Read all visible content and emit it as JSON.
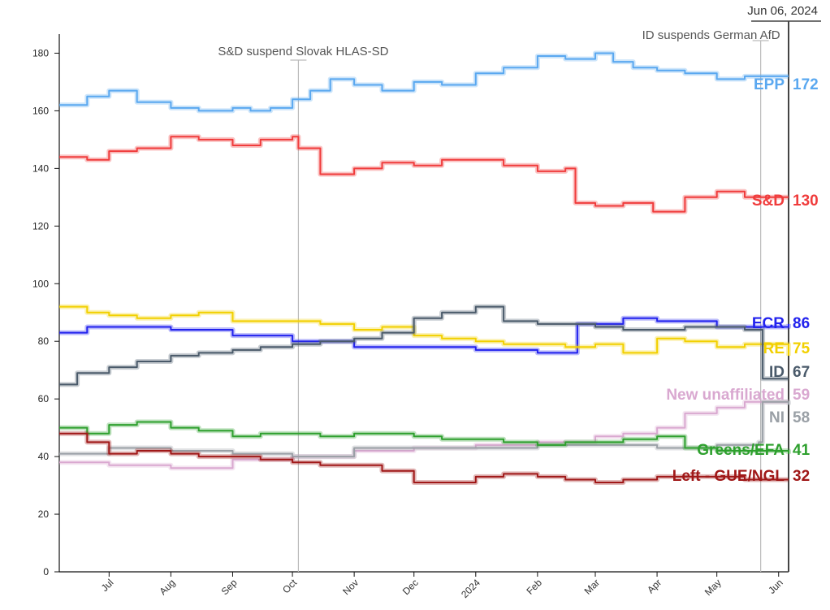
{
  "chart_data": {
    "type": "line",
    "title": "",
    "xlabel": "",
    "ylabel": "",
    "ylim": [
      0,
      190
    ],
    "yticks": [
      0,
      20,
      40,
      60,
      80,
      100,
      120,
      140,
      160,
      180
    ],
    "x_range": [
      "2023-06-06",
      "2024-06-06"
    ],
    "x_ticks": [
      {
        "label": "Jul",
        "date": "2023-07-01"
      },
      {
        "label": "Aug",
        "date": "2023-08-01"
      },
      {
        "label": "Sep",
        "date": "2023-09-01"
      },
      {
        "label": "Oct",
        "date": "2023-10-01"
      },
      {
        "label": "Nov",
        "date": "2023-11-01"
      },
      {
        "label": "Dec",
        "date": "2023-12-01"
      },
      {
        "label": "2024",
        "date": "2024-01-01"
      },
      {
        "label": "Feb",
        "date": "2024-02-01"
      },
      {
        "label": "Mar",
        "date": "2024-03-01"
      },
      {
        "label": "Apr",
        "date": "2024-04-01"
      },
      {
        "label": "May",
        "date": "2024-05-01"
      },
      {
        "label": "Jun",
        "date": "2024-06-01"
      }
    ],
    "grid": false,
    "legend": "inline labels at right end of each line",
    "annotations": [
      {
        "date": "2023-10-04",
        "text": "S&D suspend Slovak HLAS-SD"
      },
      {
        "date": "2024-05-23",
        "text": "ID suspends German AfD"
      },
      {
        "date": "2024-06-06",
        "text": "Jun 06, 2024"
      }
    ],
    "series": [
      {
        "name": "EPP",
        "value_label": "172",
        "color": "#5aa8f0",
        "dates": [
          "2023-06-06",
          "2023-06-20",
          "2023-07-01",
          "2023-07-15",
          "2023-08-01",
          "2023-08-15",
          "2023-09-01",
          "2023-09-10",
          "2023-09-20",
          "2023-10-01",
          "2023-10-10",
          "2023-10-20",
          "2023-11-01",
          "2023-11-15",
          "2023-12-01",
          "2023-12-15",
          "2024-01-01",
          "2024-01-15",
          "2024-02-01",
          "2024-02-15",
          "2024-03-01",
          "2024-03-10",
          "2024-03-20",
          "2024-04-01",
          "2024-04-15",
          "2024-05-01",
          "2024-05-15",
          "2024-06-06"
        ],
        "values": [
          162,
          165,
          167,
          163,
          161,
          160,
          161,
          160,
          161,
          164,
          167,
          171,
          169,
          167,
          170,
          169,
          173,
          175,
          179,
          178,
          180,
          177,
          175,
          174,
          173,
          171,
          172,
          172
        ]
      },
      {
        "name": "S&D",
        "value_label": "130",
        "color": "#f03c3c",
        "dates": [
          "2023-06-06",
          "2023-06-20",
          "2023-07-01",
          "2023-07-15",
          "2023-08-01",
          "2023-08-15",
          "2023-09-01",
          "2023-09-15",
          "2023-10-01",
          "2023-10-04",
          "2023-10-15",
          "2023-11-01",
          "2023-11-15",
          "2023-12-01",
          "2023-12-15",
          "2024-01-01",
          "2024-01-15",
          "2024-02-01",
          "2024-02-15",
          "2024-02-20",
          "2024-03-01",
          "2024-03-15",
          "2024-03-30",
          "2024-04-15",
          "2024-05-01",
          "2024-05-15",
          "2024-06-06"
        ],
        "values": [
          144,
          143,
          146,
          147,
          151,
          150,
          148,
          150,
          151,
          147,
          138,
          140,
          142,
          141,
          143,
          143,
          141,
          139,
          140,
          128,
          127,
          128,
          125,
          130,
          132,
          130,
          130
        ]
      },
      {
        "name": "ECR",
        "value_label": "86",
        "color": "#2222ee",
        "dates": [
          "2023-06-06",
          "2023-06-20",
          "2023-07-01",
          "2023-08-01",
          "2023-09-01",
          "2023-10-01",
          "2023-11-01",
          "2023-12-01",
          "2024-01-01",
          "2024-02-01",
          "2024-02-20",
          "2024-02-21",
          "2024-03-01",
          "2024-03-15",
          "2024-04-01",
          "2024-05-01",
          "2024-06-06"
        ],
        "values": [
          83,
          85,
          85,
          84,
          82,
          80,
          78,
          78,
          77,
          76,
          76,
          86,
          86,
          88,
          87,
          85,
          86
        ]
      },
      {
        "name": "RE",
        "value_label": "75",
        "color": "#f2d000",
        "dates": [
          "2023-06-06",
          "2023-06-20",
          "2023-07-01",
          "2023-07-15",
          "2023-08-01",
          "2023-08-15",
          "2023-09-01",
          "2023-09-15",
          "2023-10-01",
          "2023-10-15",
          "2023-11-01",
          "2023-11-15",
          "2023-12-01",
          "2023-12-15",
          "2024-01-01",
          "2024-01-15",
          "2024-02-01",
          "2024-02-15",
          "2024-03-01",
          "2024-03-15",
          "2024-04-01",
          "2024-04-15",
          "2024-05-01",
          "2024-05-15",
          "2024-06-06"
        ],
        "values": [
          92,
          90,
          89,
          88,
          89,
          90,
          87,
          87,
          87,
          86,
          84,
          85,
          82,
          81,
          80,
          79,
          79,
          78,
          79,
          76,
          81,
          80,
          78,
          79,
          75
        ]
      },
      {
        "name": "ID",
        "value_label": "67",
        "color": "#4a5a6a",
        "dates": [
          "2023-06-06",
          "2023-06-15",
          "2023-07-01",
          "2023-07-15",
          "2023-08-01",
          "2023-08-15",
          "2023-09-01",
          "2023-09-15",
          "2023-10-01",
          "2023-10-15",
          "2023-11-01",
          "2023-11-15",
          "2023-12-01",
          "2023-12-15",
          "2024-01-01",
          "2024-01-15",
          "2024-02-01",
          "2024-02-15",
          "2024-03-01",
          "2024-03-15",
          "2024-04-01",
          "2024-04-15",
          "2024-05-01",
          "2024-05-15",
          "2024-05-23",
          "2024-05-24",
          "2024-06-06"
        ],
        "values": [
          65,
          69,
          71,
          73,
          75,
          76,
          77,
          78,
          79,
          80,
          81,
          83,
          88,
          90,
          92,
          87,
          86,
          86,
          85,
          84,
          84,
          85,
          85,
          84,
          84,
          67,
          67
        ]
      },
      {
        "name": "New unaffiliated",
        "value_label": "59",
        "color": "#d9a8d0",
        "dates": [
          "2023-06-06",
          "2023-07-01",
          "2023-08-01",
          "2023-08-31",
          "2023-09-01",
          "2023-10-01",
          "2023-11-01",
          "2023-12-01",
          "2024-01-01",
          "2024-02-01",
          "2024-03-01",
          "2024-03-15",
          "2024-04-01",
          "2024-04-15",
          "2024-05-01",
          "2024-05-15",
          "2024-06-06"
        ],
        "values": [
          38,
          37,
          36,
          36,
          39,
          40,
          42,
          43,
          44,
          45,
          47,
          48,
          50,
          55,
          57,
          59,
          59
        ]
      },
      {
        "name": "NI",
        "value_label": "58",
        "color": "#9aa0a6",
        "dates": [
          "2023-06-06",
          "2023-07-01",
          "2023-08-01",
          "2023-09-01",
          "2023-10-01",
          "2023-11-01",
          "2023-12-01",
          "2024-01-01",
          "2024-02-01",
          "2024-03-01",
          "2024-04-01",
          "2024-05-01",
          "2024-05-22",
          "2024-05-24",
          "2024-06-06"
        ],
        "values": [
          41,
          43,
          42,
          41,
          40,
          43,
          43,
          43,
          44,
          44,
          43,
          44,
          45,
          59,
          58
        ]
      },
      {
        "name": "Greens/EFA",
        "value_label": "41",
        "color": "#2ea02e",
        "dates": [
          "2023-06-06",
          "2023-06-20",
          "2023-07-01",
          "2023-07-15",
          "2023-08-01",
          "2023-08-15",
          "2023-09-01",
          "2023-09-15",
          "2023-10-01",
          "2023-10-15",
          "2023-11-01",
          "2023-11-15",
          "2023-12-01",
          "2023-12-15",
          "2024-01-01",
          "2024-01-15",
          "2024-02-01",
          "2024-02-15",
          "2024-03-01",
          "2024-03-15",
          "2024-04-01",
          "2024-04-15",
          "2024-05-01",
          "2024-05-15",
          "2024-06-06"
        ],
        "values": [
          50,
          48,
          51,
          52,
          50,
          49,
          47,
          48,
          48,
          47,
          48,
          48,
          47,
          46,
          46,
          45,
          44,
          45,
          45,
          46,
          47,
          43,
          42,
          42,
          41
        ]
      },
      {
        "name": "Left - GUE/NGL",
        "value_label": "32",
        "color": "#a01818",
        "dates": [
          "2023-06-06",
          "2023-06-20",
          "2023-07-01",
          "2023-07-15",
          "2023-08-01",
          "2023-08-15",
          "2023-09-01",
          "2023-09-15",
          "2023-10-01",
          "2023-10-15",
          "2023-11-01",
          "2023-11-15",
          "2023-12-01",
          "2023-12-15",
          "2024-01-01",
          "2024-01-15",
          "2024-02-01",
          "2024-02-15",
          "2024-03-01",
          "2024-03-15",
          "2024-04-01",
          "2024-04-15",
          "2024-05-01",
          "2024-05-15",
          "2024-06-06"
        ],
        "values": [
          48,
          45,
          41,
          42,
          41,
          40,
          40,
          39,
          38,
          37,
          37,
          35,
          31,
          31,
          33,
          34,
          33,
          32,
          31,
          32,
          33,
          33,
          33,
          32,
          32
        ]
      }
    ]
  }
}
